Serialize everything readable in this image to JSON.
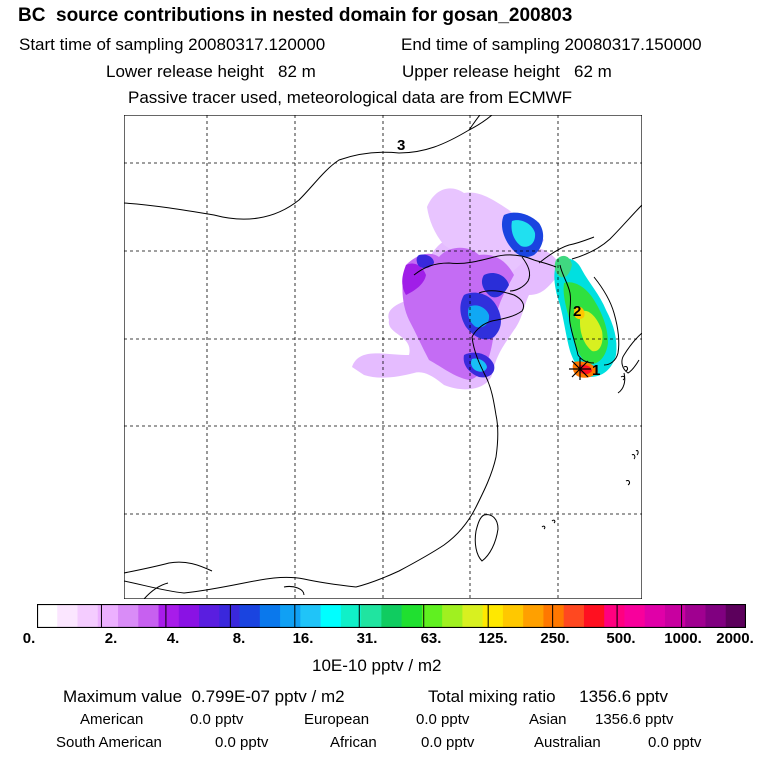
{
  "title": "BC  source contributions in nested domain for gosan_200803",
  "sampling": {
    "start": "Start time of sampling 20080317.120000",
    "end": "End time of sampling 20080317.150000"
  },
  "release": {
    "lower": "Lower release height   82 m",
    "upper": "Upper release height   62 m"
  },
  "note": "Passive tracer used, meteorological data are from ECMWF",
  "map_labels": {
    "label_1": "1",
    "label_2": "2",
    "label_3": "3"
  },
  "colorbar": {
    "colors": [
      "#ffffff",
      "#fbe6ff",
      "#f4ccff",
      "#ecb0ff",
      "#d98cf7",
      "#c760f0",
      "#a81cea",
      "#8a12e4",
      "#5a1ee0",
      "#3a28dc",
      "#1a44e0",
      "#0a78ec",
      "#10a0f4",
      "#20c4f8",
      "#00ffff",
      "#10f0c8",
      "#20e4a0",
      "#10cc60",
      "#20e030",
      "#60f020",
      "#a0f020",
      "#d8f020",
      "#ffe800",
      "#ffc800",
      "#ffa000",
      "#ff7800",
      "#ff4820",
      "#ff1020",
      "#ff0080",
      "#f8009c",
      "#e000a8",
      "#c800a0",
      "#a00090",
      "#800080",
      "#5c005c"
    ],
    "ticks": [
      "0.",
      "2.",
      "4.",
      "8.",
      "16.",
      "31.",
      "63.",
      "125.",
      "250.",
      "500.",
      "1000.",
      "2000."
    ],
    "unit": "10E-10 pptv / m2"
  },
  "summary": {
    "max_value": "Maximum value  0.799E-07 pptv / m2",
    "total": "Total mixing ratio     1356.6 pptv",
    "american": "American",
    "american_val": "0.0 pptv",
    "european": "European",
    "european_val": "0.0 pptv",
    "asian": "Asian",
    "asian_val": "1356.6 pptv",
    "south_american": "South American",
    "south_american_val": "0.0 pptv",
    "african": "African",
    "african_val": "0.0 pptv",
    "australian": "Australian",
    "australian_val": "0.0 pptv"
  }
}
